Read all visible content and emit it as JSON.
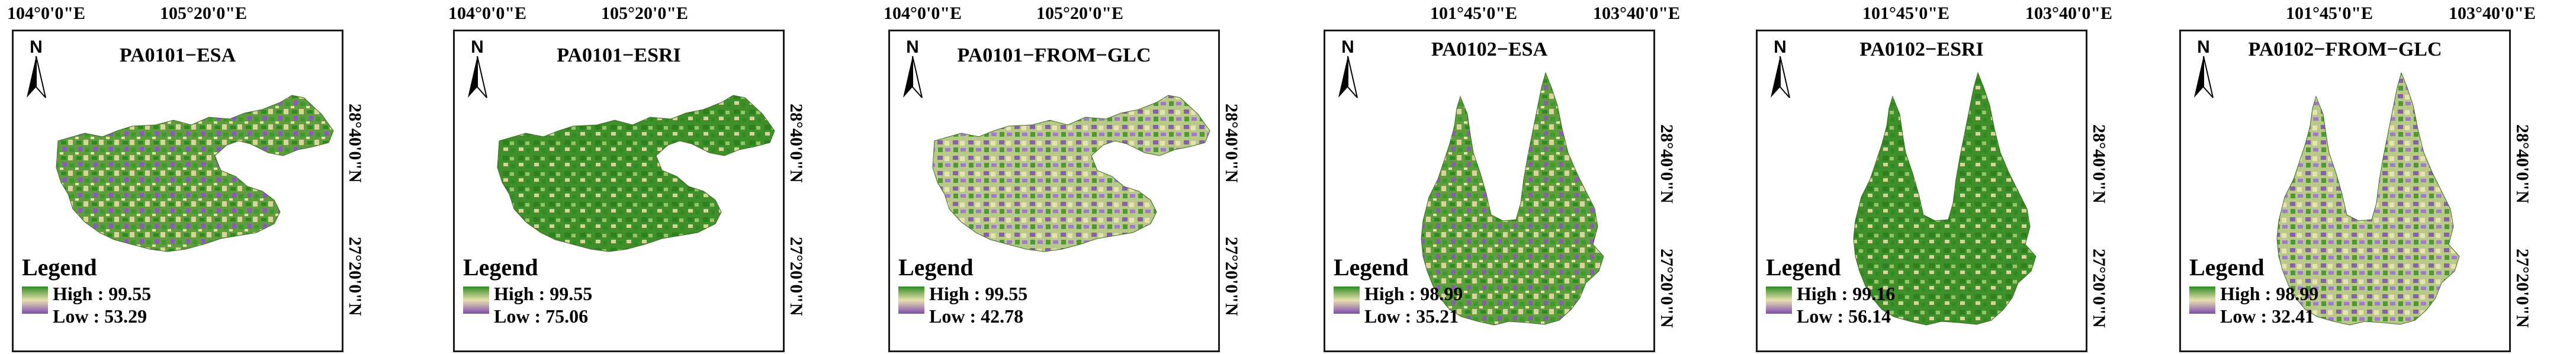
{
  "colors": {
    "high": "#2e8b22",
    "mid": "#e8e2b0",
    "low": "#7e4bb0",
    "frame": "#1a1a1a"
  },
  "panels": [
    {
      "title": "PA0101−ESA",
      "x_ticks": [
        "104°0'0\"E",
        "105°20'0\"E"
      ],
      "y_ticks": [
        "28°40'0\"N",
        "27°20'0\"N"
      ],
      "north": "N",
      "legend": {
        "title": "Legend",
        "high": "High : 99.55",
        "low": "Low : 53.29"
      }
    },
    {
      "title": "PA0101−ESRI",
      "x_ticks": [
        "104°0'0\"E",
        "105°20'0\"E"
      ],
      "y_ticks": [
        "28°40'0\"N",
        "27°20'0\"N"
      ],
      "north": "N",
      "legend": {
        "title": "Legend",
        "high": "High : 99.55",
        "low": "Low : 75.06"
      }
    },
    {
      "title": "PA0101−FROM−GLC",
      "x_ticks": [
        "104°0'0\"E",
        "105°20'0\"E"
      ],
      "y_ticks": [
        "28°40'0\"N",
        "27°20'0\"N"
      ],
      "north": "N",
      "legend": {
        "title": "Legend",
        "high": "High : 99.55",
        "low": "Low : 42.78"
      }
    },
    {
      "title": "PA0102−ESA",
      "x_ticks": [
        "101°45'0\"E",
        "103°40'0\"E"
      ],
      "y_ticks": [
        "28°40'0\"N",
        "27°20'0\"N"
      ],
      "north": "N",
      "legend": {
        "title": "Legend",
        "high": "High : 98.99",
        "low": "Low : 35.21"
      }
    },
    {
      "title": "PA0102−ESRI",
      "x_ticks": [
        "101°45'0\"E",
        "103°40'0\"E"
      ],
      "y_ticks": [
        "28°40'0\"N",
        "27°20'0\"N"
      ],
      "north": "N",
      "legend": {
        "title": "Legend",
        "high": "High : 99.16",
        "low": "Low : 56.14"
      }
    },
    {
      "title": "PA0102−FROM−GLC",
      "x_ticks": [
        "101°45'0\"E",
        "103°40'0\"E"
      ],
      "y_ticks": [
        "28°40'0\"N",
        "27°20'0\"N"
      ],
      "north": "N",
      "legend": {
        "title": "Legend",
        "high": "High : 98.99",
        "low": "Low : 32.41"
      }
    }
  ]
}
